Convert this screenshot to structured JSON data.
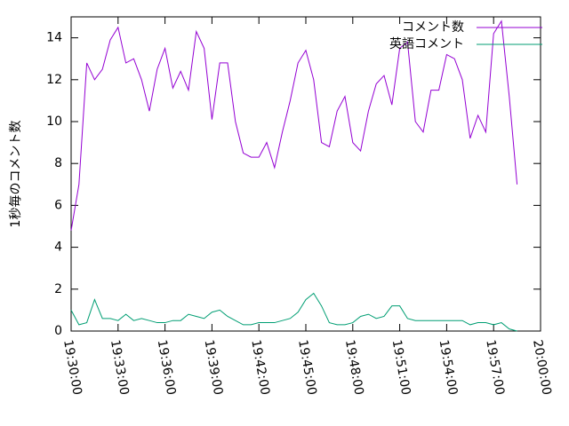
{
  "chart_data": {
    "type": "line",
    "y_label": "1秒毎のコメント数",
    "x": [
      "19:30:00",
      "19:30:30",
      "19:31:00",
      "19:31:30",
      "19:32:00",
      "19:32:30",
      "19:33:00",
      "19:33:30",
      "19:34:00",
      "19:34:30",
      "19:35:00",
      "19:35:30",
      "19:36:00",
      "19:36:30",
      "19:37:00",
      "19:37:30",
      "19:38:00",
      "19:38:30",
      "19:39:00",
      "19:39:30",
      "19:40:00",
      "19:40:30",
      "19:41:00",
      "19:41:30",
      "19:42:00",
      "19:42:30",
      "19:43:00",
      "19:43:30",
      "19:44:00",
      "19:44:30",
      "19:45:00",
      "19:45:30",
      "19:46:00",
      "19:46:30",
      "19:47:00",
      "19:47:30",
      "19:48:00",
      "19:48:30",
      "19:49:00",
      "19:49:30",
      "19:50:00",
      "19:50:30",
      "19:51:00",
      "19:51:30",
      "19:52:00",
      "19:52:30",
      "19:53:00",
      "19:53:30",
      "19:54:00",
      "19:54:30",
      "19:55:00",
      "19:55:30",
      "19:56:00",
      "19:56:30",
      "19:57:00",
      "19:57:30",
      "19:58:00",
      "19:58:30"
    ],
    "series": [
      {
        "name": "コメント数",
        "color": "#9400d3",
        "values": [
          4.8,
          7.0,
          12.8,
          12.0,
          12.5,
          13.9,
          14.5,
          12.8,
          13.0,
          12.0,
          10.5,
          12.5,
          13.5,
          11.6,
          12.4,
          11.5,
          14.3,
          13.5,
          10.1,
          12.8,
          12.8,
          10.0,
          8.5,
          8.3,
          8.3,
          9.0,
          7.8,
          9.5,
          11.0,
          12.8,
          13.4,
          12.0,
          9.0,
          8.8,
          10.5,
          11.2,
          9.0,
          8.6,
          10.5,
          11.8,
          12.2,
          10.8,
          13.5,
          13.8,
          10.0,
          9.5,
          11.5,
          11.5,
          13.2,
          13.0,
          12.0,
          9.2,
          10.3,
          9.5,
          14.2,
          14.8,
          11.2,
          7.0
        ]
      },
      {
        "name": "英語コメント",
        "color": "#009e73",
        "values": [
          1.0,
          0.3,
          0.4,
          1.5,
          0.6,
          0.6,
          0.5,
          0.8,
          0.5,
          0.6,
          0.5,
          0.4,
          0.4,
          0.5,
          0.5,
          0.8,
          0.7,
          0.6,
          0.9,
          1.0,
          0.7,
          0.5,
          0.3,
          0.3,
          0.4,
          0.4,
          0.4,
          0.5,
          0.6,
          0.9,
          1.5,
          1.8,
          1.2,
          0.4,
          0.3,
          0.3,
          0.4,
          0.7,
          0.8,
          0.6,
          0.7,
          1.2,
          1.2,
          0.6,
          0.5,
          0.5,
          0.5,
          0.5,
          0.5,
          0.5,
          0.5,
          0.3,
          0.4,
          0.4,
          0.3,
          0.4,
          0.1,
          0.0
        ]
      }
    ],
    "xlim": [
      "19:30:00",
      "20:00:00"
    ],
    "xticks": [
      "19:30:00",
      "19:33:00",
      "19:36:00",
      "19:39:00",
      "19:42:00",
      "19:45:00",
      "19:48:00",
      "19:51:00",
      "19:54:00",
      "19:57:00",
      "20:00:00"
    ],
    "ylim": [
      0,
      15
    ],
    "yticks": [
      0,
      2,
      4,
      6,
      8,
      10,
      12,
      14
    ],
    "legend": "top-right"
  }
}
